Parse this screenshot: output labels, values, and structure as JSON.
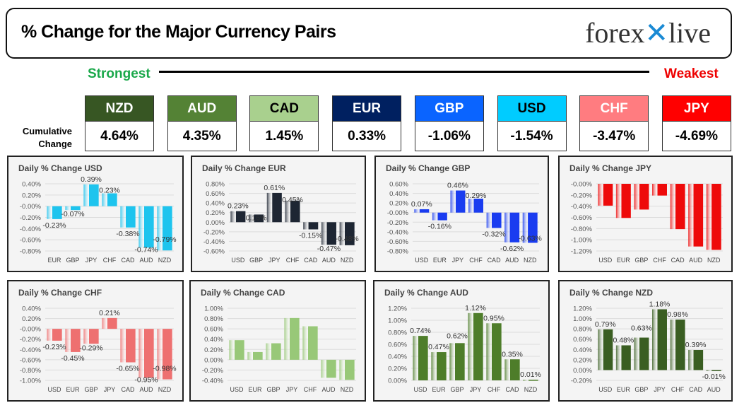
{
  "header": {
    "title": "% Change for the Major Currency Pairs",
    "logo": "forexlive"
  },
  "scale": {
    "strongest": "Strongest",
    "weakest": "Weakest"
  },
  "cumulative_label": "Cumulative Change",
  "currencies": [
    {
      "name": "NZD",
      "value": "4.64%",
      "color": "#375623",
      "text": "#ffffff"
    },
    {
      "name": "AUD",
      "value": "4.35%",
      "color": "#548235",
      "text": "#ffffff"
    },
    {
      "name": "CAD",
      "value": "1.45%",
      "color": "#a9d08e",
      "text": "#000000"
    },
    {
      "name": "EUR",
      "value": "0.33%",
      "color": "#002060",
      "text": "#ffffff"
    },
    {
      "name": "GBP",
      "value": "-1.06%",
      "color": "#0a64ff",
      "text": "#ffffff"
    },
    {
      "name": "USD",
      "value": "-1.54%",
      "color": "#00ccff",
      "text": "#000000"
    },
    {
      "name": "CHF",
      "value": "-3.47%",
      "color": "#ff7c80",
      "text": "#ffffff"
    },
    {
      "name": "JPY",
      "value": "-4.69%",
      "color": "#ff0000",
      "text": "#ffffff"
    }
  ],
  "chart_data": [
    {
      "type": "bar",
      "title": "Daily % Change USD",
      "categories": [
        "EUR",
        "GBP",
        "JPY",
        "CHF",
        "CAD",
        "AUD",
        "NZD"
      ],
      "values": [
        -0.23,
        -0.07,
        0.39,
        0.23,
        -0.38,
        -0.74,
        -0.79
      ],
      "data_labels": true,
      "ylim": [
        -0.8,
        0.4
      ],
      "color": "#1ec4ee",
      "grid": true
    },
    {
      "type": "bar",
      "title": "Daily % Change EUR",
      "categories": [
        "USD",
        "GBP",
        "JPY",
        "CHF",
        "CAD",
        "AUD",
        "NZD"
      ],
      "values": [
        0.23,
        0.16,
        0.61,
        0.45,
        -0.15,
        -0.47,
        -0.48
      ],
      "data_labels": true,
      "ylim": [
        -0.6,
        0.8
      ],
      "color": "#1e2633",
      "grid": true
    },
    {
      "type": "bar",
      "title": "Daily % Change GBP",
      "categories": [
        "USD",
        "EUR",
        "JPY",
        "CHF",
        "CAD",
        "AUD",
        "NZD"
      ],
      "values": [
        0.07,
        -0.16,
        0.46,
        0.29,
        -0.32,
        -0.62,
        -0.63
      ],
      "data_labels": true,
      "ylim": [
        -0.8,
        0.6
      ],
      "color": "#1a3cf0",
      "grid": true
    },
    {
      "type": "bar",
      "title": "Daily % Change JPY",
      "categories": [
        "USD",
        "EUR",
        "GBP",
        "CHF",
        "CAD",
        "AUD",
        "NZD"
      ],
      "values": [
        -0.39,
        -0.61,
        -0.46,
        -0.21,
        -0.81,
        -1.12,
        -1.18
      ],
      "data_labels": false,
      "ylim": [
        -1.2,
        0
      ],
      "color": "#ee0a0a",
      "grid": true
    },
    {
      "type": "bar",
      "title": "Daily % Change CHF",
      "categories": [
        "USD",
        "EUR",
        "GBP",
        "JPY",
        "CAD",
        "AUD",
        "NZD"
      ],
      "values": [
        -0.23,
        -0.45,
        -0.29,
        0.21,
        -0.65,
        -0.95,
        -0.98
      ],
      "data_labels": true,
      "ylim": [
        -1.0,
        0.4
      ],
      "color": "#ee7070",
      "grid": true
    },
    {
      "type": "bar",
      "title": "Daily % Change CAD",
      "categories": [
        "USD",
        "EUR",
        "GBP",
        "JPY",
        "CHF",
        "AUD",
        "NZD"
      ],
      "values": [
        0.38,
        0.15,
        0.32,
        0.81,
        0.65,
        -0.35,
        -0.39
      ],
      "data_labels": false,
      "ylim": [
        -0.4,
        1.0
      ],
      "color": "#98c878",
      "grid": true
    },
    {
      "type": "bar",
      "title": "Daily % Change AUD",
      "categories": [
        "USD",
        "EUR",
        "GBP",
        "JPY",
        "CHF",
        "CAD",
        "NZD"
      ],
      "values": [
        0.74,
        0.47,
        0.62,
        1.12,
        0.95,
        0.35,
        0.01
      ],
      "data_labels": true,
      "ylim": [
        0,
        1.2
      ],
      "color": "#4e7d2a",
      "grid": true
    },
    {
      "type": "bar",
      "title": "Daily % Change NZD",
      "categories": [
        "USD",
        "EUR",
        "GBP",
        "JPY",
        "CHF",
        "CAD",
        "AUD"
      ],
      "values": [
        0.79,
        0.48,
        0.63,
        1.18,
        0.98,
        0.39,
        -0.01
      ],
      "data_labels": true,
      "ylim": [
        -0.2,
        1.2
      ],
      "color": "#3a5e22",
      "grid": true
    }
  ]
}
